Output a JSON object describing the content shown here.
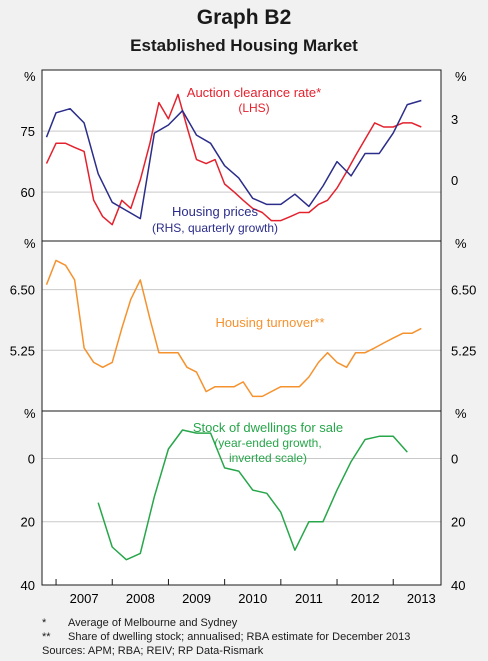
{
  "title": "Graph B2",
  "subtitle": "Established Housing Market",
  "panels": [
    {
      "unit_left": "%",
      "unit_right": "%",
      "left_ticks": [
        {
          "v": 60,
          "label": "60"
        },
        {
          "v": 75,
          "label": "75"
        }
      ],
      "right_ticks": [
        {
          "v": 0,
          "label": "0"
        },
        {
          "v": 3,
          "label": "3"
        }
      ]
    },
    {
      "unit_left": "%",
      "unit_right": "%",
      "left_ticks": [
        {
          "v": 5.25,
          "label": "5.25"
        },
        {
          "v": 6.5,
          "label": "6.50"
        }
      ],
      "right_ticks": [
        {
          "v": 5.25,
          "label": "5.25"
        },
        {
          "v": 6.5,
          "label": "6.50"
        }
      ]
    },
    {
      "unit_left": "%",
      "unit_right": "%",
      "left_ticks": [
        {
          "v": 0,
          "label": "0"
        },
        {
          "v": 20,
          "label": "20"
        },
        {
          "v": 40,
          "label": "40"
        }
      ],
      "right_ticks": [
        {
          "v": 0,
          "label": "0"
        },
        {
          "v": 20,
          "label": "20"
        },
        {
          "v": 40,
          "label": "40"
        }
      ]
    }
  ],
  "chart_data": [
    {
      "type": "line",
      "ylim_left": [
        48,
        90
      ],
      "ylim_right": [
        -3,
        5.4
      ],
      "series": [
        {
          "name": "Auction clearance rate*",
          "sublabel": "(LHS)",
          "color": "#e3222e",
          "axis": "left",
          "x": [
            2006.83,
            2007.0,
            2007.17,
            2007.33,
            2007.5,
            2007.67,
            2007.83,
            2008.0,
            2008.17,
            2008.33,
            2008.5,
            2008.67,
            2008.83,
            2009.0,
            2009.17,
            2009.33,
            2009.5,
            2009.67,
            2009.83,
            2010.0,
            2010.17,
            2010.33,
            2010.5,
            2010.67,
            2010.83,
            2011.0,
            2011.17,
            2011.33,
            2011.5,
            2011.67,
            2011.83,
            2012.0,
            2012.17,
            2012.33,
            2012.5,
            2012.67,
            2012.83,
            2013.0,
            2013.17,
            2013.33,
            2013.5
          ],
          "y": [
            67,
            72,
            72,
            71,
            70,
            58,
            54,
            52,
            58,
            56,
            63,
            72,
            82,
            78,
            84,
            76,
            68,
            67,
            68,
            62,
            60,
            58,
            56,
            55,
            53,
            53,
            54,
            55,
            55,
            57,
            58,
            61,
            65,
            69,
            73,
            77,
            76,
            76,
            77,
            77,
            76
          ]
        },
        {
          "name": "Housing prices",
          "sublabel": "(RHS, quarterly growth)",
          "color": "#2b2d8a",
          "axis": "right",
          "x": [
            2006.83,
            2007.0,
            2007.25,
            2007.5,
            2007.75,
            2008.0,
            2008.25,
            2008.5,
            2008.75,
            2009.0,
            2009.25,
            2009.5,
            2009.75,
            2010.0,
            2010.25,
            2010.5,
            2010.75,
            2011.0,
            2011.25,
            2011.5,
            2011.75,
            2012.0,
            2012.25,
            2012.5,
            2012.75,
            2013.0,
            2013.25,
            2013.5
          ],
          "y": [
            2.1,
            3.3,
            3.5,
            2.8,
            0.3,
            -1.1,
            -1.5,
            -1.9,
            2.3,
            2.7,
            3.4,
            2.2,
            1.8,
            0.7,
            0.1,
            -0.9,
            -1.2,
            -1.2,
            -0.7,
            -1.3,
            -0.3,
            0.9,
            0.2,
            1.3,
            1.3,
            2.3,
            3.7,
            3.9
          ]
        }
      ]
    },
    {
      "type": "line",
      "ylim": [
        4.0,
        7.5
      ],
      "series": [
        {
          "name": "Housing turnover**",
          "color": "#f5922e",
          "axis": "left",
          "x": [
            2006.83,
            2007.0,
            2007.17,
            2007.33,
            2007.5,
            2007.67,
            2007.83,
            2008.0,
            2008.17,
            2008.33,
            2008.5,
            2008.67,
            2008.83,
            2009.0,
            2009.17,
            2009.33,
            2009.5,
            2009.67,
            2009.83,
            2010.0,
            2010.17,
            2010.33,
            2010.5,
            2010.67,
            2010.83,
            2011.0,
            2011.17,
            2011.33,
            2011.5,
            2011.67,
            2011.83,
            2012.0,
            2012.17,
            2012.33,
            2012.5,
            2012.67,
            2012.83,
            2013.0,
            2013.17,
            2013.33,
            2013.5
          ],
          "y": [
            6.6,
            7.1,
            7.0,
            6.7,
            5.3,
            5.0,
            4.9,
            5.0,
            5.7,
            6.3,
            6.7,
            5.9,
            5.2,
            5.2,
            5.2,
            4.9,
            4.8,
            4.4,
            4.5,
            4.5,
            4.5,
            4.6,
            4.3,
            4.3,
            4.4,
            4.5,
            4.5,
            4.5,
            4.7,
            5.0,
            5.2,
            5.0,
            4.9,
            5.2,
            5.2,
            5.3,
            5.4,
            5.5,
            5.6,
            5.6,
            5.7
          ]
        }
      ]
    },
    {
      "type": "line",
      "ylim": [
        40,
        -15
      ],
      "inverted": true,
      "series": [
        {
          "name": "Stock of dwellings for sale",
          "sublabel1": "(year-ended growth,",
          "sublabel2": "inverted scale)",
          "color": "#27a64a",
          "axis": "left",
          "x": [
            2007.75,
            2008.0,
            2008.25,
            2008.5,
            2008.75,
            2009.0,
            2009.25,
            2009.5,
            2009.75,
            2010.0,
            2010.25,
            2010.5,
            2010.75,
            2011.0,
            2011.25,
            2011.5,
            2011.75,
            2012.0,
            2012.25,
            2012.5,
            2012.75,
            2013.0,
            2013.25
          ],
          "y": [
            14,
            28,
            32,
            30,
            12,
            -3,
            -9,
            -8,
            -8,
            3,
            4,
            10,
            11,
            17,
            29,
            20,
            20,
            10,
            1,
            -6,
            -7,
            -7,
            -2
          ]
        }
      ]
    }
  ],
  "x_axis": {
    "tick_labels": [
      "2007",
      "2008",
      "2009",
      "2010",
      "2011",
      "2012",
      "2013"
    ]
  },
  "footnotes": [
    {
      "mark": "*",
      "text": "Average of Melbourne and Sydney"
    },
    {
      "mark": "**",
      "text": "Share of dwelling stock; annualised; RBA estimate for December 2013"
    },
    {
      "mark": "",
      "text": "Sources: APM; RBA; REIV; RP Data-Rismark"
    }
  ]
}
